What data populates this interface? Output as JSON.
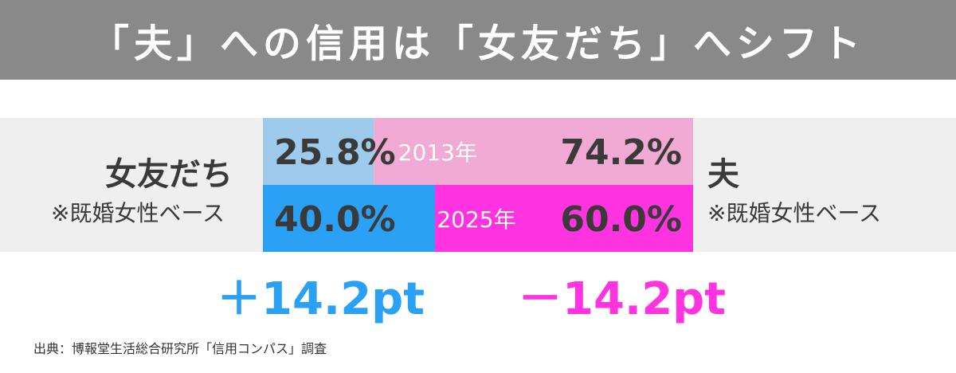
{
  "title": "「夫」への信用は「女友だち」へシフト",
  "left_label": {
    "main": "女友だち",
    "sub": "※既婚女性ベース"
  },
  "right_label": {
    "main": "夫",
    "sub": "※既婚女性ベース"
  },
  "diffs": {
    "left": "＋14.2pt",
    "right": "－14.2pt"
  },
  "source": "出典：博報堂生活総合研究所「信用コンパス」調査",
  "colors": {
    "banner": "#898989",
    "band": "#efefef",
    "left_2013": "#9ecbec",
    "right_2013": "#f1aad4",
    "left_2025": "#2aa1f4",
    "right_2025": "#ff33df",
    "plus": "#2aa1f4",
    "minus": "#ff33df"
  },
  "chart_data": {
    "type": "bar",
    "orientation": "horizontal-stacked-100",
    "categories": [
      "2013年",
      "2025年"
    ],
    "series": [
      {
        "name": "女友だち",
        "values": [
          25.8,
          40.0
        ],
        "labels": [
          "25.8%",
          "40.0%"
        ]
      },
      {
        "name": "夫",
        "values": [
          74.2,
          60.0
        ],
        "labels": [
          "74.2%",
          "60.0%"
        ]
      }
    ],
    "xlim": [
      0,
      100
    ],
    "grid": false,
    "legend": "left-and-right-side-labels"
  }
}
